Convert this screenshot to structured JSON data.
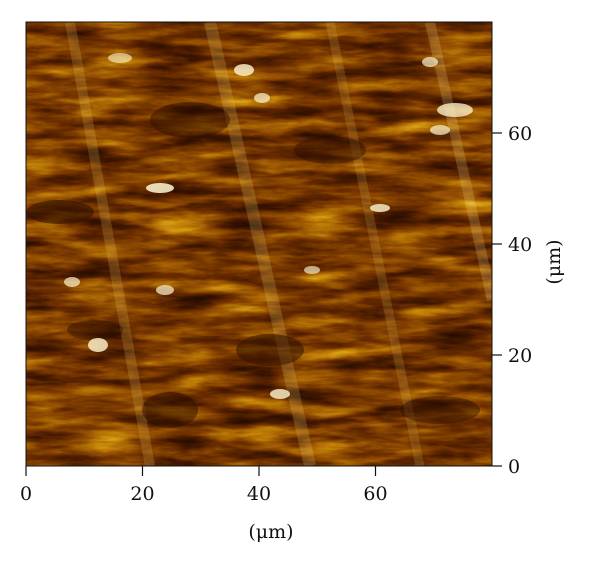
{
  "figure": {
    "colormap": {
      "stops": [
        "#1e0a00",
        "#3f1600",
        "#6a2e00",
        "#995402",
        "#c48508",
        "#e2b425",
        "#f6e37a",
        "#fffbe6"
      ]
    },
    "frame_color": "#111111",
    "x_axis": {
      "range": [
        0,
        80
      ],
      "ticks": [
        0,
        20,
        40,
        60
      ],
      "tick_labels": [
        "0",
        "20",
        "40",
        "60"
      ],
      "title": "(μm)"
    },
    "y_axis": {
      "range": [
        0,
        80
      ],
      "ticks": [
        0,
        20,
        40,
        60
      ],
      "tick_labels": [
        "0",
        "20",
        "40",
        "60"
      ],
      "title": "(μm)"
    }
  }
}
